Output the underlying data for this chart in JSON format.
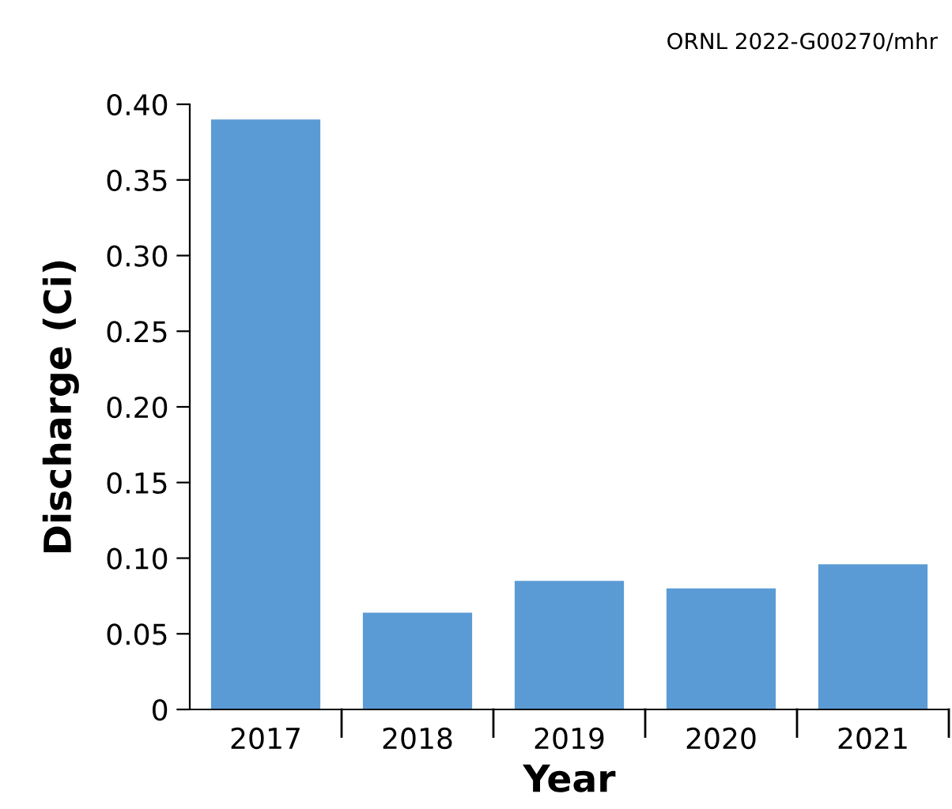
{
  "chart_data": {
    "type": "bar",
    "xlabel": "Year",
    "ylabel": "Discharge (Ci)",
    "categories": [
      "2017",
      "2018",
      "2019",
      "2020",
      "2021"
    ],
    "values": [
      0.39,
      0.064,
      0.085,
      0.08,
      0.096
    ],
    "color": "#5b9bd5",
    "ylim": [
      0,
      0.4
    ],
    "yticks": [
      {
        "value": 0,
        "label": "0"
      },
      {
        "value": 0.05,
        "label": "0.05"
      },
      {
        "value": 0.1,
        "label": "0.10"
      },
      {
        "value": 0.15,
        "label": "0.15"
      },
      {
        "value": 0.2,
        "label": "0.20"
      },
      {
        "value": 0.25,
        "label": "0.25"
      },
      {
        "value": 0.3,
        "label": "0.30"
      },
      {
        "value": 0.35,
        "label": "0.35"
      },
      {
        "value": 0.4,
        "label": "0.40"
      }
    ],
    "grid": false,
    "legend": false,
    "annotations": [
      "ORNL 2022-G00270/mhr"
    ]
  }
}
